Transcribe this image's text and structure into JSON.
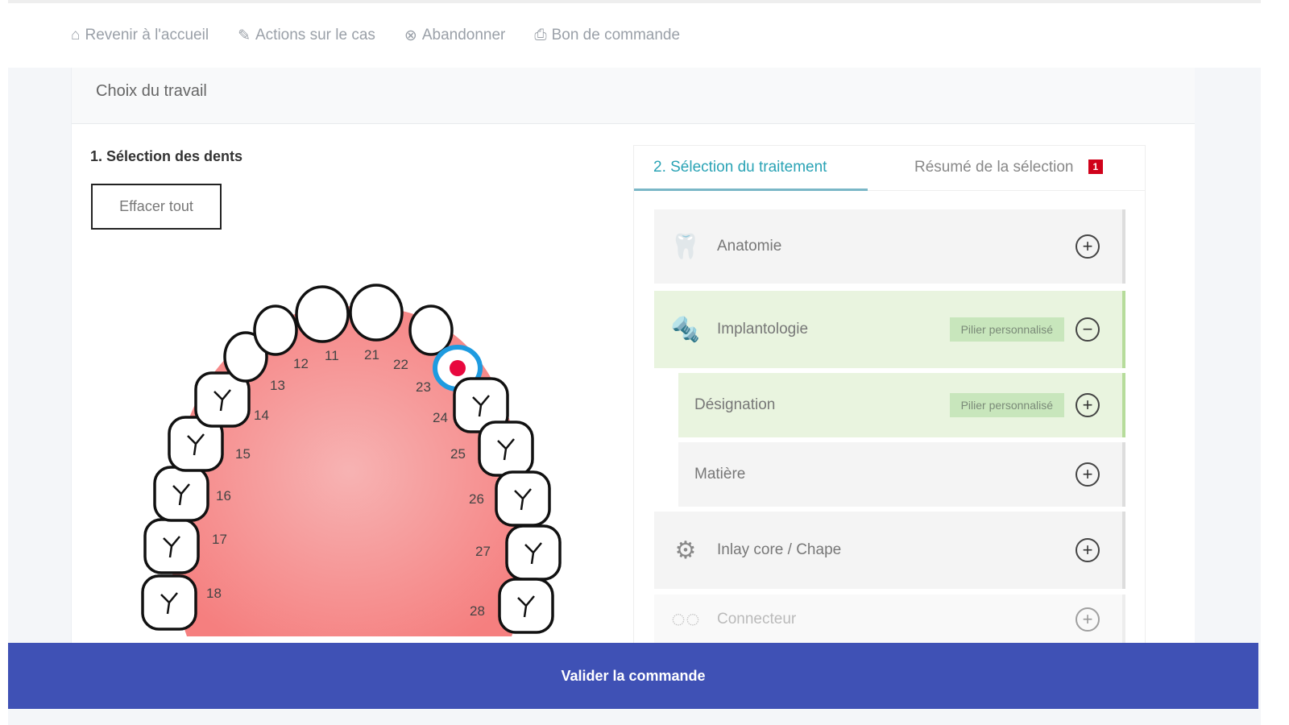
{
  "nav": [
    {
      "icon": "home-icon",
      "label": "Revenir à l'accueil"
    },
    {
      "icon": "pencil-icon",
      "label": "Actions sur le cas"
    },
    {
      "icon": "cancel-circle-icon",
      "label": "Abandonner"
    },
    {
      "icon": "printer-icon",
      "label": "Bon de commande"
    }
  ],
  "card_title": "Choix du travail",
  "teeth_section": {
    "title": "1. Sélection des dents",
    "clear_label": "Effacer tout",
    "selected_tooth": "23",
    "teeth": [
      "18",
      "17",
      "16",
      "15",
      "14",
      "13",
      "12",
      "11",
      "21",
      "22",
      "23",
      "24",
      "25",
      "26",
      "27",
      "28"
    ]
  },
  "treatment": {
    "tab_active": "2. Sélection du traitement",
    "tab_summary": "Résumé de la sélection",
    "summary_count": "1",
    "rows": [
      {
        "label": "Anatomie",
        "icon": "crown-icon",
        "state": "collapsed",
        "tag": ""
      },
      {
        "label": "Implantologie",
        "icon": "implant-icon",
        "state": "expanded",
        "tag": "Pilier personnalisé"
      },
      {
        "label": "Désignation",
        "icon": "",
        "state": "collapsed",
        "tag": "Pilier personnalisé"
      },
      {
        "label": "Matière",
        "icon": "",
        "state": "collapsed",
        "tag": ""
      },
      {
        "label": "Inlay core / Chape",
        "icon": "inlay-core-icon",
        "state": "collapsed",
        "tag": ""
      },
      {
        "label": "Connecteur",
        "icon": "connector-icon",
        "state": "collapsed",
        "tag": ""
      }
    ]
  },
  "footer": {
    "validate_label": "Valider la commande"
  },
  "colors": {
    "accent": "#2aa3b5",
    "footer": "#3f51b5",
    "selected": "#1e9be0",
    "badge": "#d0021b",
    "active_row": "#e9f4df"
  }
}
